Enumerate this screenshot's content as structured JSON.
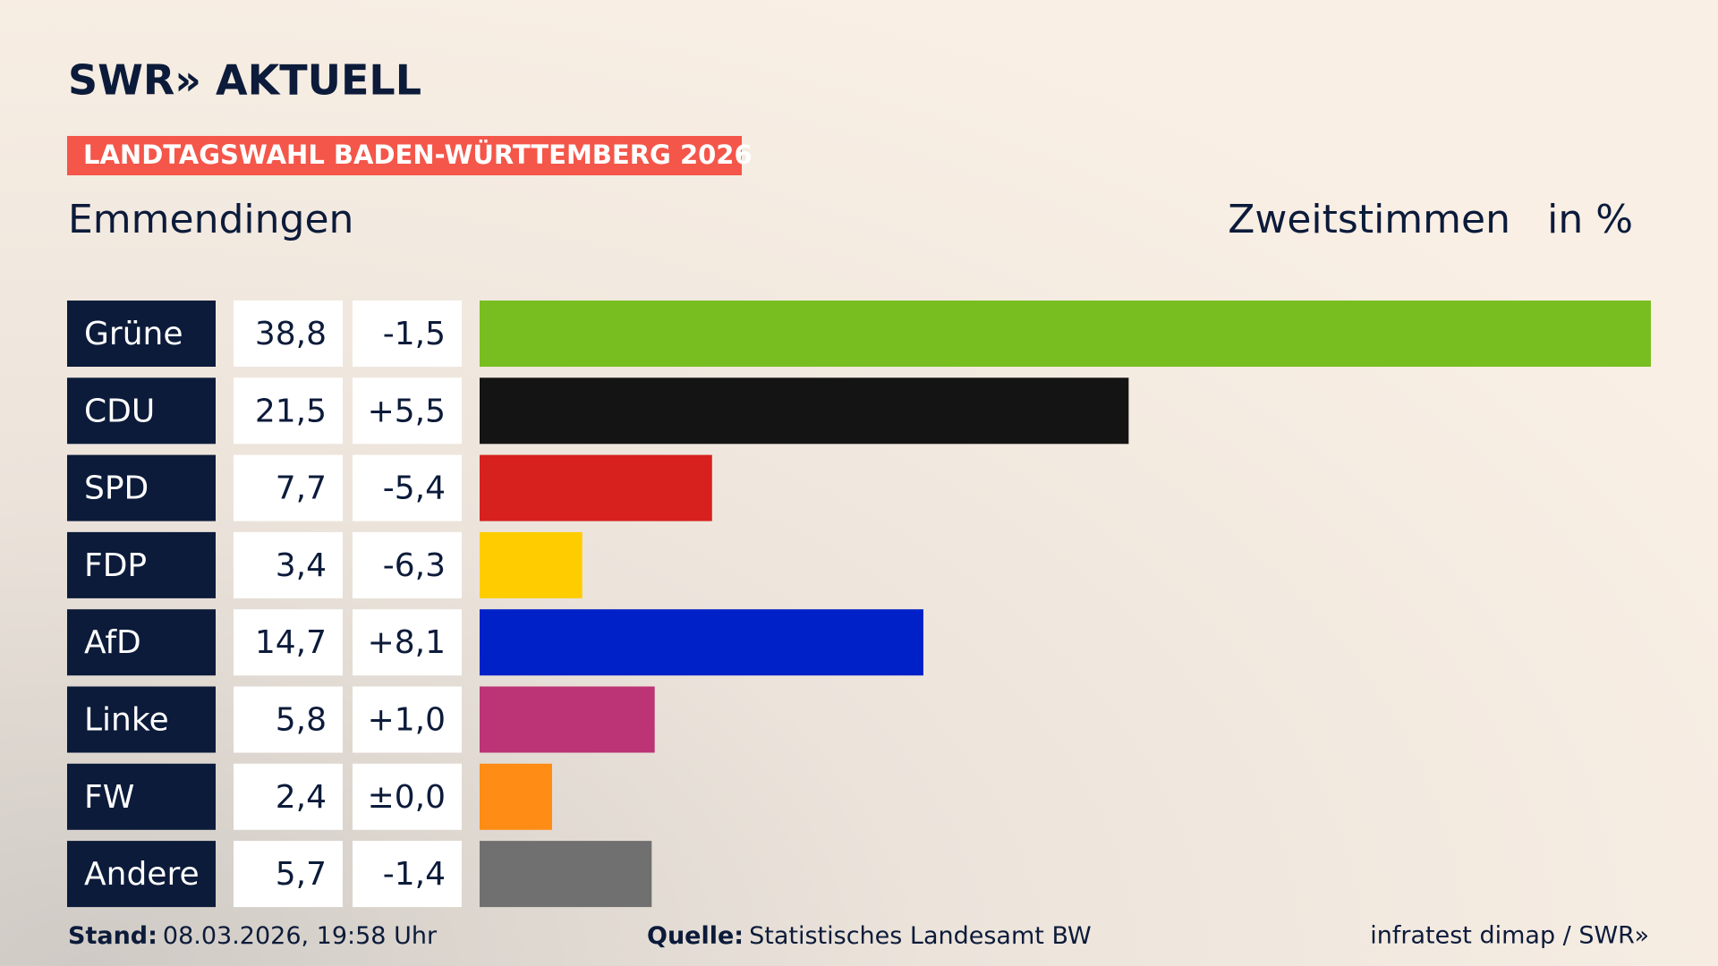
{
  "header": {
    "logo": "SWR» AKTUELL"
  },
  "chart_data": {
    "type": "bar",
    "orientation": "horizontal",
    "supertitle": "LANDTAGSWAHL BADEN-WÜRTTEMBERG 2026",
    "title": "Emmendingen",
    "subtitle": "Zweitstimmen",
    "unit": "in %",
    "categories": [
      "Grüne",
      "CDU",
      "SPD",
      "FDP",
      "AfD",
      "Linke",
      "FW",
      "Andere"
    ],
    "values": [
      38.8,
      21.5,
      7.7,
      3.4,
      14.7,
      5.8,
      2.4,
      5.7
    ],
    "value_labels": [
      "38,8",
      "21,5",
      "7,7",
      "3,4",
      "14,7",
      "5,8",
      "2,4",
      "5,7"
    ],
    "changes": [
      "-1,5",
      "+5,5",
      "-5,4",
      "-6,3",
      "+8,1",
      "+1,0",
      "±0,0",
      "-1,4"
    ],
    "colors": [
      "#78be20",
      "#141414",
      "#d7211e",
      "#ffcc00",
      "#0021c8",
      "#bc3475",
      "#ff8c14",
      "#707070"
    ]
  },
  "footer": {
    "stand_label": "Stand:",
    "stand": "08.03.2026, 19:58 Uhr",
    "source_label": "Quelle:",
    "source": "Statistisches Landesamt BW",
    "credit": "infratest dimap / SWR»"
  }
}
